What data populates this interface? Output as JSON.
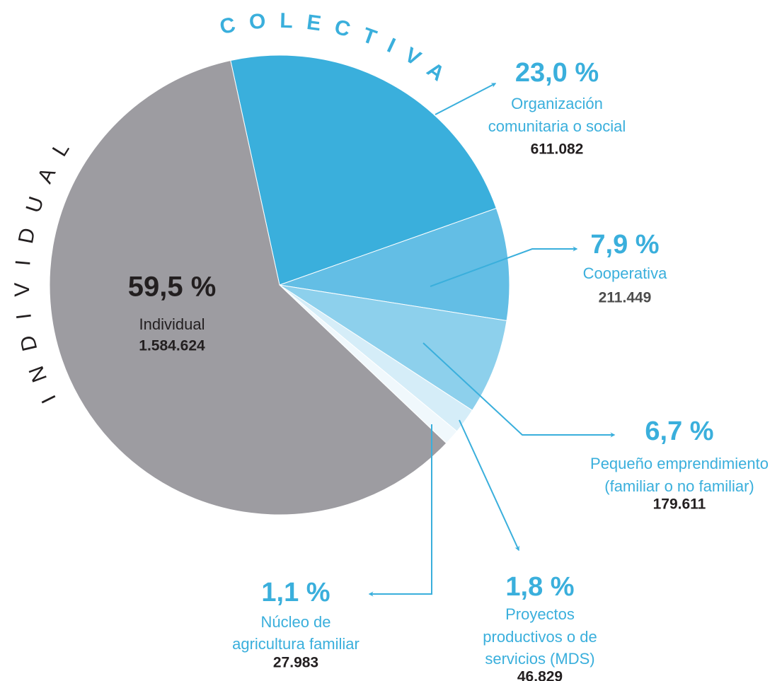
{
  "chart_data": {
    "type": "pie",
    "categories": [
      [
        "Organización",
        "comunitaria o social"
      ],
      [
        "Cooperativa"
      ],
      [
        "Pequeño emprendimiento",
        "(familiar o no familiar)"
      ],
      [
        "Proyectos",
        "productivos o de",
        "servicios (MDS)"
      ],
      [
        "Núcleo de",
        "agricultura familiar"
      ],
      [
        "Individual"
      ]
    ],
    "values": [
      23.0,
      7.9,
      6.7,
      1.8,
      1.1,
      59.5
    ],
    "value_labels": [
      "23,0 %",
      "7,9 %",
      "6,7 %",
      "1,8 %",
      "1,1 %",
      "59,5 %"
    ],
    "counts": [
      611082,
      211449,
      179611,
      46829,
      27983,
      1584624
    ],
    "count_labels": [
      "611.082",
      "211.449",
      "179.611",
      "46.829",
      "27.983",
      "1.584.624"
    ],
    "colors": [
      "#3aafdc",
      "#63bee5",
      "#8dd0ec",
      "#d5edf8",
      "#f0f8fc",
      "#9d9ca1"
    ],
    "groups": [
      {
        "label": "COLECTIVA",
        "color": "#3aafdc"
      },
      {
        "label": "INDIVIDUAL",
        "color": "#231f20"
      }
    ]
  }
}
